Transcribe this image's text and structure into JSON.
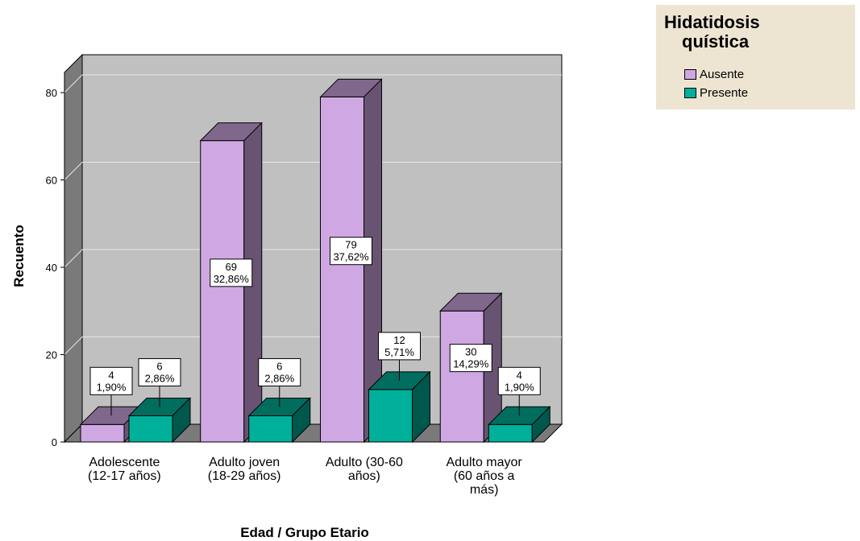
{
  "chart_data": {
    "type": "bar",
    "xlabel": "Edad / Grupo Etario",
    "ylabel": "Recuento",
    "ylim": [
      0,
      80
    ],
    "yticks": [
      "0",
      "20",
      "40",
      "60",
      "80"
    ],
    "grid": true,
    "categories": [
      [
        "Adolescente",
        "(12-17 años)"
      ],
      [
        "Adulto joven",
        "(18-29 años)"
      ],
      [
        "Adulto (30-60",
        "años)"
      ],
      [
        "Adulto mayor",
        "(60 años a",
        "más)"
      ]
    ],
    "series": [
      {
        "name": "Ausente",
        "color": "#cfa8e3",
        "values": [
          4,
          69,
          79,
          30
        ],
        "labels": [
          [
            "4",
            "1,90%"
          ],
          [
            "69",
            "32,86%"
          ],
          [
            "79",
            "37,62%"
          ],
          [
            "30",
            "14,29%"
          ]
        ]
      },
      {
        "name": "Presente",
        "color": "#00b09a",
        "values": [
          6,
          6,
          12,
          4
        ],
        "labels": [
          [
            "6",
            "2,86%"
          ],
          [
            "6",
            "2,86%"
          ],
          [
            "12",
            "5,71%"
          ],
          [
            "4",
            "1,90%"
          ]
        ]
      }
    ]
  },
  "legend": {
    "title_line1": "Hidatidosis",
    "title_line2": "quística",
    "items": [
      "Ausente",
      "Presente"
    ],
    "colors": [
      "#cfa8e3",
      "#00b09a"
    ]
  }
}
